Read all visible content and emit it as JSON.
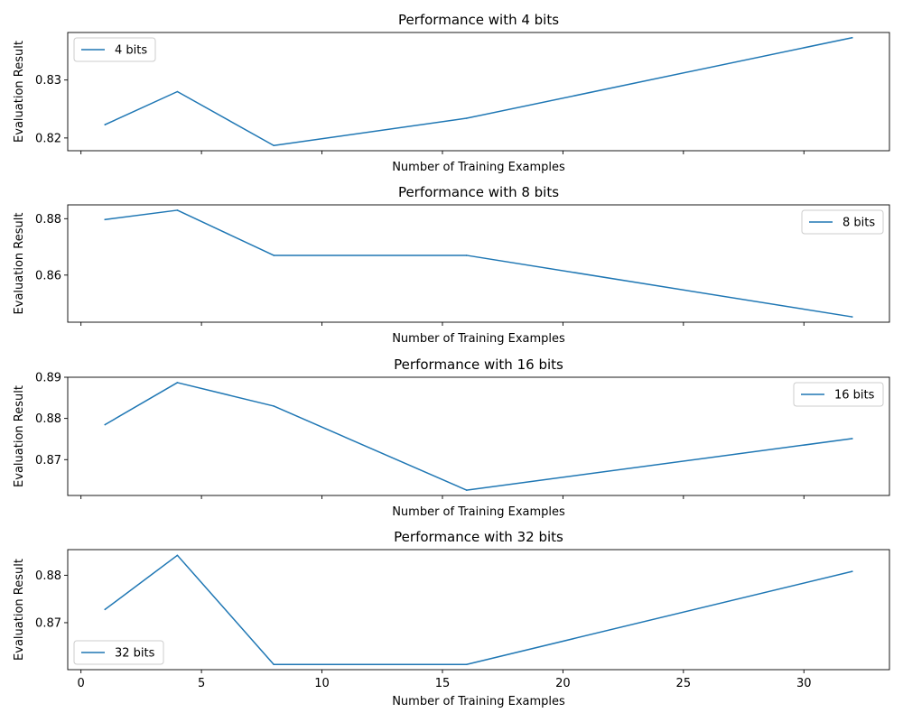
{
  "figure": {
    "line_color": "#1f77b4",
    "sharex": true
  },
  "chart_data": [
    {
      "type": "line",
      "title": "Performance with 4 bits",
      "xlabel": "Number of Training Examples",
      "ylabel": "Evaluation Result",
      "x": [
        1,
        4,
        8,
        16,
        32
      ],
      "series": [
        {
          "name": "4 bits",
          "values": [
            0.8223,
            0.828,
            0.8187,
            0.8234,
            0.8373
          ]
        }
      ],
      "xlim": [
        -0.55,
        33.55
      ],
      "ylim": [
        0.8178,
        0.8382
      ],
      "xticks": [
        0,
        5,
        10,
        15,
        20,
        25,
        30
      ],
      "yticks": [
        0.82,
        0.83
      ],
      "yticklabels": [
        "0.82",
        "0.83"
      ],
      "show_xticklabels": false,
      "legend_loc": "upper-left",
      "grid": false
    },
    {
      "type": "line",
      "title": "Performance with 8 bits",
      "xlabel": "Number of Training Examples",
      "ylabel": "Evaluation Result",
      "x": [
        1,
        4,
        8,
        16,
        32
      ],
      "series": [
        {
          "name": "8 bits",
          "values": [
            0.8797,
            0.883,
            0.867,
            0.867,
            0.8452
          ]
        }
      ],
      "xlim": [
        -0.55,
        33.55
      ],
      "ylim": [
        0.8433,
        0.8849
      ],
      "xticks": [
        0,
        5,
        10,
        15,
        20,
        25,
        30
      ],
      "yticks": [
        0.86,
        0.88
      ],
      "yticklabels": [
        "0.86",
        "0.88"
      ],
      "show_xticklabels": false,
      "legend_loc": "upper-right",
      "grid": false
    },
    {
      "type": "line",
      "title": "Performance with 16 bits",
      "xlabel": "Number of Training Examples",
      "ylabel": "Evaluation Result",
      "x": [
        1,
        4,
        8,
        16,
        32
      ],
      "series": [
        {
          "name": "16 bits",
          "values": [
            0.8785,
            0.8887,
            0.883,
            0.8626,
            0.8751
          ]
        }
      ],
      "xlim": [
        -0.55,
        33.55
      ],
      "ylim": [
        0.8613,
        0.89
      ],
      "xticks": [
        0,
        5,
        10,
        15,
        20,
        25,
        30
      ],
      "yticks": [
        0.87,
        0.88,
        0.89
      ],
      "yticklabels": [
        "0.87",
        "0.88",
        "0.89"
      ],
      "show_xticklabels": false,
      "legend_loc": "upper-right",
      "grid": false
    },
    {
      "type": "line",
      "title": "Performance with 32 bits",
      "xlabel": "Number of Training Examples",
      "ylabel": "Evaluation Result",
      "x": [
        1,
        4,
        8,
        16,
        32
      ],
      "series": [
        {
          "name": "32 bits",
          "values": [
            0.8728,
            0.8842,
            0.8612,
            0.8612,
            0.8808
          ]
        }
      ],
      "xlim": [
        -0.55,
        33.55
      ],
      "ylim": [
        0.8601,
        0.8854
      ],
      "xticks": [
        0,
        5,
        10,
        15,
        20,
        25,
        30
      ],
      "yticks": [
        0.87,
        0.88
      ],
      "yticklabels": [
        "0.87",
        "0.88"
      ],
      "show_xticklabels": true,
      "xticklabels": [
        "0",
        "5",
        "10",
        "15",
        "20",
        "25",
        "30"
      ],
      "legend_loc": "lower-left",
      "grid": false
    }
  ]
}
